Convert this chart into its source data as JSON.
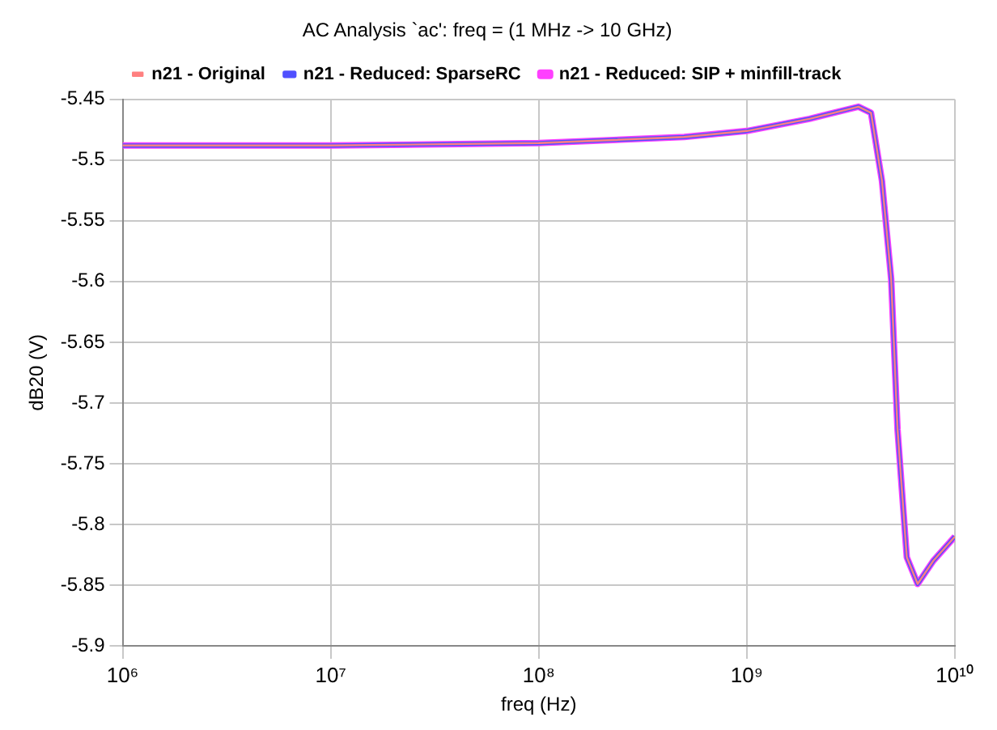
{
  "chart_data": {
    "type": "line",
    "title": "AC Analysis `ac': freq = (1 MHz -> 10 GHz)",
    "xlabel": "freq (Hz)",
    "ylabel": "dB20 (V)",
    "log": "x",
    "grid": true,
    "legend": "top",
    "xlim": [
      1000000,
      10000000000
    ],
    "xticks": [
      {
        "value": 1000000,
        "label": "10⁶"
      },
      {
        "value": 10000000,
        "label": "10⁷"
      },
      {
        "value": 100000000,
        "label": "10⁸"
      },
      {
        "value": 1000000000,
        "label": "10⁹"
      },
      {
        "value": 10000000000,
        "label": "10¹⁰"
      }
    ],
    "ylim": [
      -5.9,
      -5.45
    ],
    "yticks": [
      -5.9,
      -5.85,
      -5.8,
      -5.75,
      -5.7,
      -5.65,
      -5.6,
      -5.55,
      -5.5,
      -5.45
    ],
    "x": [
      1000000,
      10000000,
      100000000,
      500000000,
      1000000000,
      2000000000,
      3440000000,
      3950000000,
      4460000000,
      4940000000,
      5300000000,
      5870000000,
      6620000000,
      7870000000,
      10000000000
    ],
    "series": [
      {
        "name": "n21 - Original",
        "color": "#ff8080",
        "values": [
          -5.488,
          -5.488,
          -5.486,
          -5.481,
          -5.476,
          -5.466,
          -5.456,
          -5.461,
          -5.517,
          -5.598,
          -5.722,
          -5.827,
          -5.849,
          -5.83,
          -5.81
        ]
      },
      {
        "name": "n21 - Reduced: SparseRC",
        "color": "#5050ff",
        "values": [
          -5.488,
          -5.488,
          -5.486,
          -5.481,
          -5.476,
          -5.466,
          -5.456,
          -5.461,
          -5.517,
          -5.598,
          -5.722,
          -5.827,
          -5.849,
          -5.83,
          -5.81
        ]
      },
      {
        "name": "n21 - Reduced: SIP + minfill-track",
        "color": "#ff40ff",
        "values": [
          -5.488,
          -5.488,
          -5.486,
          -5.481,
          -5.476,
          -5.466,
          -5.456,
          -5.461,
          -5.517,
          -5.598,
          -5.722,
          -5.827,
          -5.849,
          -5.83,
          -5.81
        ]
      }
    ]
  }
}
